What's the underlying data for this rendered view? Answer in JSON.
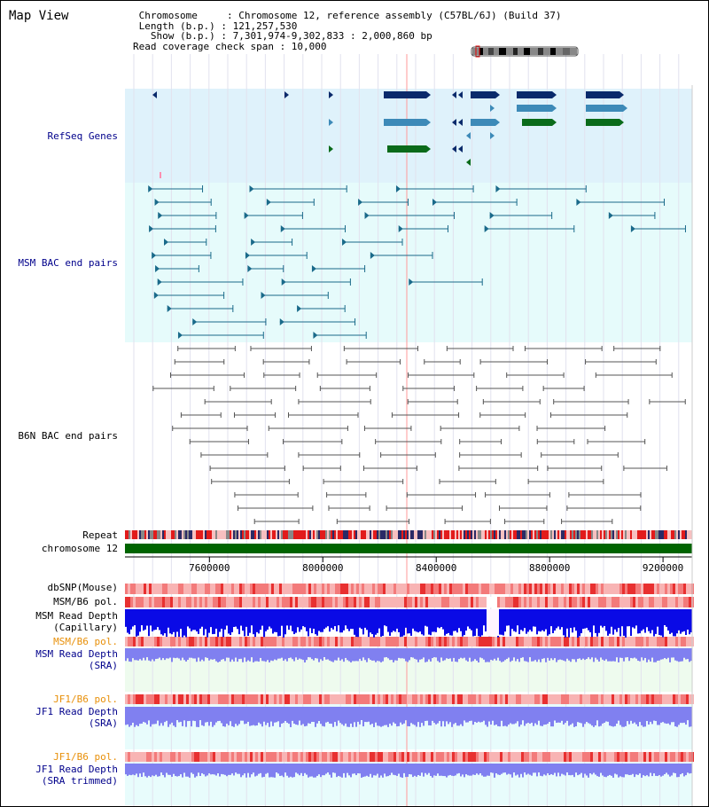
{
  "header": {
    "title": "Map View",
    "info_lines": [
      " Chromosome     : Chromosome 12, reference assembly (C57BL/6J) (Build 37)",
      " Length (b.p.) : 121,257,530",
      "   Show (b.p.) : 7,301,974-9,302,833 : 2,000,860 bp",
      "Read coverage check span : 10,000"
    ]
  },
  "tracks": {
    "refseq": "RefSeq Genes",
    "msm_bac": "MSM BAC end pairs",
    "b6n_bac": "B6N BAC end pairs",
    "repeat": "Repeat",
    "chromosome": "chromosome 12",
    "dbsnp": "dbSNP(Mouse)",
    "msm_b6_pol": "MSM/B6 pol.",
    "msm_depth_cap_1": "MSM Read Depth",
    "msm_depth_cap_2": "(Capillary)",
    "msm_b6_pol_sra": "MSM/B6 pol.",
    "msm_depth_sra_1": "MSM Read Depth",
    "msm_depth_sra_2": "(SRA)",
    "jf1_b6_pol": "JF1/B6 pol.",
    "jf1_depth_sra_1": "JF1 Read Depth",
    "jf1_depth_sra_2": "(SRA)",
    "jf1_b6_pol_trim": "JF1/B6 pol.",
    "jf1_depth_trim_1": "JF1 Read Depth",
    "jf1_depth_trim_2": "(SRA trimmed)"
  },
  "axis": {
    "ticks": [
      "7600000",
      "8000000",
      "8400000",
      "8800000",
      "9200000"
    ],
    "tick_values": [
      7600000,
      8000000,
      8400000,
      8800000,
      9200000
    ],
    "range": [
      7301974,
      9302833
    ]
  },
  "colors": {
    "refseq_bg": "#dff2fb",
    "msm_bg": "#e6fbfb",
    "b6n_bg": "#ffffff",
    "chromosome_bar": "#006400",
    "gene_dark": "#0a2a6b",
    "gene_mid": "#3d8ab8",
    "gene_green": "#0a6b1a",
    "msm_line": "#1a6a8a",
    "b6n_line": "#555555",
    "depth_cap": "#0a0ae6",
    "depth_sra": "#8080f0",
    "pol_light": "#f8b4b4",
    "pol_dark": "#e83030",
    "highlight": "#ff9999"
  }
}
